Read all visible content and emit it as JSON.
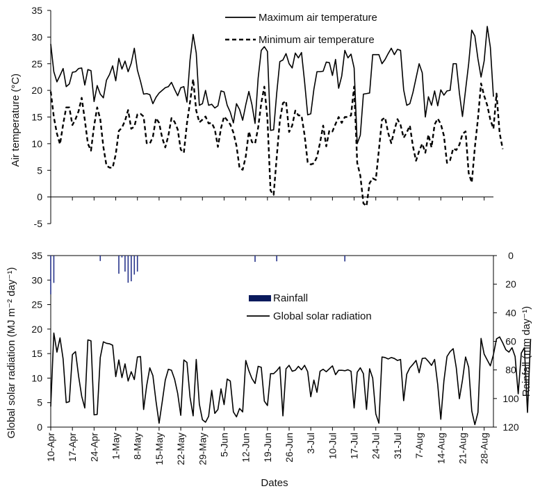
{
  "chart_data": [
    {
      "type": "line",
      "panel": "temperature",
      "ylabel": "Air temperature (°C)",
      "ylim": [
        -5,
        35
      ],
      "yticks": [
        "-5",
        "0",
        "5",
        "10",
        "15",
        "20",
        "25",
        "30",
        "35"
      ],
      "x_start": "10-Apr",
      "x_end": "1-Sep",
      "series": [
        {
          "name": "Maximum air temperature",
          "style": "solid",
          "color": "#000000",
          "values": [
            28.7,
            23.5,
            21.6,
            22.8,
            24.1,
            20.7,
            21.2,
            23.4,
            23.5,
            24.1,
            24.2,
            21.0,
            23.9,
            23.7,
            17.9,
            20.9,
            19.3,
            18.6,
            21.9,
            23.0,
            24.6,
            21.8,
            26.0,
            24.0,
            25.5,
            23.5,
            25.1,
            27.9,
            23.8,
            21.7,
            19.3,
            19.4,
            19.2,
            17.5,
            18.7,
            19.5,
            20.0,
            20.5,
            20.7,
            21.5,
            20.2,
            19.0,
            20.5,
            20.7,
            17.8,
            25.7,
            30.5,
            27.0,
            17.2,
            17.5,
            20.0,
            17.2,
            17.4,
            16.7,
            17.1,
            19.9,
            19.7,
            17.2,
            15.9,
            13.9,
            17.5,
            16.4,
            14.4,
            17.3,
            19.8,
            17.3,
            13.8,
            22.3,
            27.5,
            28.2,
            27.3,
            12.5,
            12.6,
            19.5,
            25.4,
            25.7,
            26.9,
            25.0,
            24.2,
            27.0,
            26.1,
            27.1,
            21.6,
            15.4,
            15.6,
            20.2,
            23.5,
            23.5,
            23.6,
            25.3,
            25.2,
            22.8,
            25.8,
            20.4,
            22.7,
            27.5,
            26.1,
            26.8,
            24.2,
            10.0,
            11.6,
            19.3,
            19.4,
            19.5,
            26.7,
            26.7,
            26.7,
            25.0,
            25.8,
            26.9,
            27.9,
            26.7,
            27.7,
            27.5,
            20.1,
            17.2,
            17.5,
            19.6,
            22.3,
            25.0,
            23.3,
            15.0,
            18.8,
            17.2,
            19.9,
            17.1,
            20.1,
            19.1,
            19.9,
            20.0,
            25.0,
            25.0,
            19.5,
            15.1,
            20.1,
            25.0,
            31.3,
            30.2,
            25.9,
            22.5,
            25.5,
            32.0,
            28.1,
            18.8
          ]
        },
        {
          "name": "Minimum air temperature",
          "style": "dashed",
          "color": "#000000",
          "values": [
            19.8,
            15.0,
            11.9,
            9.9,
            13.6,
            16.8,
            16.8,
            13.5,
            14.6,
            16.1,
            18.6,
            14.5,
            10.0,
            8.7,
            13.3,
            16.8,
            14.6,
            9.4,
            5.9,
            5.5,
            5.5,
            8.0,
            12.4,
            13.0,
            14.3,
            16.3,
            12.8,
            13.2,
            15.5,
            15.6,
            15.1,
            10.1,
            10.0,
            11.3,
            14.8,
            13.9,
            11.1,
            9.3,
            11.5,
            14.8,
            14.1,
            12.7,
            8.9,
            8.3,
            13.8,
            17.8,
            22.1,
            16.2,
            14.0,
            14.5,
            15.1,
            13.8,
            13.9,
            12.7,
            9.4,
            12.9,
            15.1,
            14.4,
            13.6,
            12.1,
            9.6,
            5.4,
            5.1,
            7.6,
            12.3,
            10.3,
            10.0,
            13.0,
            17.6,
            20.7,
            14.6,
            1.2,
            0.4,
            7.5,
            14.3,
            17.6,
            18.0,
            12.2,
            13.4,
            16.2,
            15.3,
            15.3,
            11.6,
            6.5,
            6.1,
            6.3,
            7.5,
            10.2,
            13.4,
            9.5,
            12.5,
            12.3,
            13.7,
            15.0,
            13.9,
            15.0,
            15.0,
            15.3,
            20.7,
            6.4,
            4.0,
            -1.2,
            -1.7,
            2.6,
            3.5,
            3.2,
            8.8,
            14.5,
            14.9,
            12.0,
            10.1,
            12.5,
            14.6,
            13.5,
            11.1,
            12.1,
            13.4,
            9.5,
            6.8,
            8.6,
            10.0,
            8.3,
            11.7,
            9.3,
            13.6,
            14.7,
            13.7,
            11.5,
            6.4,
            6.9,
            9.1,
            8.8,
            9.8,
            11.8,
            12.3,
            4.5,
            2.7,
            9.3,
            14.7,
            21.3,
            19.0,
            17.2,
            14.5,
            12.8,
            19.4,
            12.0,
            9.0
          ]
        }
      ]
    },
    {
      "type": "line",
      "panel": "radiation",
      "ylabel": "Global solar radiation (MJ m⁻² day⁻¹)",
      "ylabel_right": "Rainfall (mm day⁻¹)",
      "xlabel": "Dates",
      "ylim": [
        0,
        35
      ],
      "ylim_right": [
        0,
        120
      ],
      "yticks": [
        "0",
        "5",
        "10",
        "15",
        "20",
        "25",
        "30",
        "35"
      ],
      "yticks_right": [
        "0",
        "20",
        "40",
        "60",
        "80",
        "100",
        "120"
      ],
      "xticks": [
        "10-Apr",
        "17-Apr",
        "24-Apr",
        "1-May",
        "8-May",
        "15-May",
        "22-May",
        "29-May",
        "5-Jun",
        "12-Jun",
        "19-Jun",
        "26-Jun",
        "3-Jul",
        "10-Jul",
        "17-Jul",
        "24-Jul",
        "31-Jul",
        "7-Aug",
        "14-Aug",
        "21-Aug",
        "28-Aug"
      ],
      "x_start": "10-Apr",
      "x_end": "1-Sep",
      "series": [
        {
          "name": "Global solar radiation",
          "style": "solid",
          "color": "#000000",
          "values": [
            4.2,
            19.2,
            15.3,
            18.2,
            13.9,
            5.0,
            5.2,
            14.8,
            15.4,
            10.4,
            6.3,
            3.9,
            17.8,
            17.6,
            2.5,
            2.6,
            14.2,
            17.4,
            17.1,
            17.0,
            16.7,
            10.3,
            13.7,
            10.1,
            12.9,
            9.4,
            11.3,
            9.7,
            14.3,
            14.4,
            3.6,
            8.5,
            12.1,
            10.5,
            5.3,
            0.8,
            5.1,
            9.6,
            11.8,
            11.6,
            9.8,
            6.9,
            2.4,
            13.7,
            13.2,
            6.1,
            2.3,
            13.8,
            4.7,
            1.5,
            1.0,
            2.2,
            7.5,
            2.8,
            3.6,
            7.8,
            4.6,
            9.8,
            9.4,
            3.1,
            2.1,
            3.8,
            3.1,
            13.6,
            11.5,
            9.9,
            8.9,
            12.4,
            12.2,
            5.3,
            4.4,
            10.9,
            10.9,
            11.5,
            12.3,
            2.3,
            11.9,
            12.6,
            11.4,
            11.6,
            12.4,
            11.7,
            12.6,
            11.3,
            6.2,
            9.6,
            7.1,
            11.4,
            11.8,
            11.3,
            11.9,
            12.5,
            10.7,
            11.6,
            11.6,
            11.5,
            11.7,
            11.4,
            3.9,
            11.2,
            12.1,
            10.9,
            3.6,
            11.9,
            10.0,
            2.7,
            0.8,
            14.3,
            14.2,
            13.9,
            14.2,
            14.0,
            13.6,
            13.8,
            5.4,
            10.8,
            12.1,
            12.8,
            13.6,
            11.1,
            14.0,
            14.1,
            13.4,
            12.6,
            13.8,
            8.7,
            1.6,
            9.4,
            14.4,
            15.4,
            16.0,
            12.1,
            5.8,
            9.6,
            14.3,
            12.2,
            3.3,
            0.5,
            3.0,
            18.1,
            14.9,
            13.7,
            12.5,
            14.8,
            18.0,
            18.4,
            17.2,
            15.8,
            15.3,
            16.2,
            14.4,
            6.8,
            15.1,
            16.2,
            3.0,
            18.0
          ]
        },
        {
          "name": "Rainfall",
          "style": "bar",
          "color": "#27348b",
          "values": [
            27.1,
            19.1,
            0,
            0,
            0,
            0,
            0,
            0,
            0,
            0,
            0,
            0,
            0,
            0,
            0,
            0,
            3.8,
            0,
            0,
            0,
            0,
            0,
            12.7,
            1.3,
            11.2,
            19.0,
            18.0,
            13.3,
            11.2,
            0,
            0,
            0,
            0,
            0,
            0,
            0,
            0,
            0,
            0,
            0,
            0,
            0,
            0,
            0,
            0,
            0,
            0,
            0,
            0,
            0,
            0,
            0,
            0,
            0,
            0,
            0,
            0,
            0,
            0,
            0,
            0,
            0,
            0,
            0,
            0,
            0,
            4.4,
            0,
            0,
            0,
            0,
            0,
            0,
            4.0,
            0,
            0,
            0,
            0,
            0,
            0,
            0,
            0,
            0,
            0,
            0,
            0,
            0,
            0,
            0,
            0,
            0,
            0,
            0,
            0,
            0,
            4.1,
            0,
            0,
            0,
            0,
            0,
            0,
            0,
            0,
            0,
            0,
            0,
            0,
            0,
            0,
            0,
            0,
            0,
            0,
            0,
            0,
            0,
            0,
            0,
            0,
            0,
            0,
            0,
            0,
            0,
            0,
            0,
            0,
            0,
            0,
            0,
            0,
            0,
            0,
            0,
            0,
            0,
            0,
            0,
            0,
            0,
            0,
            0,
            0,
            0,
            0,
            0,
            0,
            0,
            0,
            0,
            0,
            0,
            0,
            0,
            0,
            0,
            0
          ]
        }
      ]
    }
  ],
  "legend": {
    "max": "Maximum air temperature",
    "min": "Minimum air temperature",
    "rain": "Rainfall",
    "solar": "Global solar radiation"
  },
  "axis_titles": {
    "top_y": "Air temperature (°C)",
    "bottom_y": "Global solar radiation (MJ m⁻² day⁻¹)",
    "right_y": "Rainfall (mm day⁻¹)",
    "x": "Dates"
  }
}
